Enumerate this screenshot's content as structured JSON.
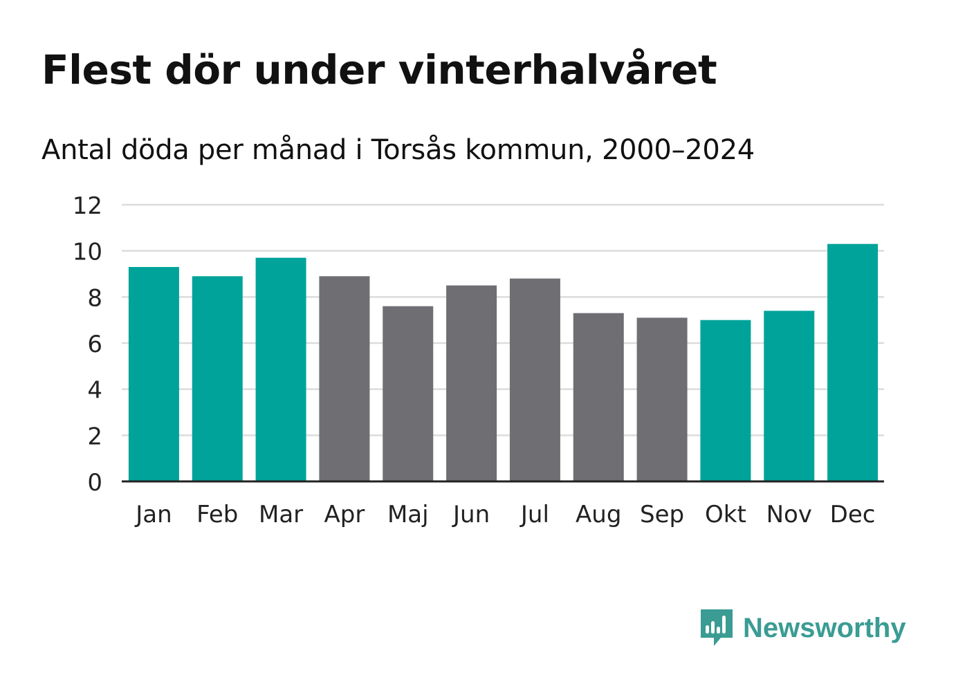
{
  "header": {
    "title": "Flest dör under vinterhalvåret",
    "subtitle": "Antal döda per månad i Torsås kommun, 2000–2024"
  },
  "chart_data": {
    "type": "bar",
    "title": "Flest dör under vinterhalvåret",
    "subtitle": "Antal döda per månad i Torsås kommun, 2000–2024",
    "xlabel": "",
    "ylabel": "",
    "ylim": [
      0,
      12
    ],
    "yticks": [
      0,
      2,
      4,
      6,
      8,
      10,
      12
    ],
    "grid": true,
    "categories": [
      "Jan",
      "Feb",
      "Mar",
      "Apr",
      "Maj",
      "Jun",
      "Jul",
      "Aug",
      "Sep",
      "Okt",
      "Nov",
      "Dec"
    ],
    "values": [
      9.3,
      8.9,
      9.7,
      8.9,
      7.6,
      8.5,
      8.8,
      7.3,
      7.1,
      7.0,
      7.4,
      10.3
    ],
    "highlight": [
      true,
      true,
      true,
      false,
      false,
      false,
      false,
      false,
      false,
      true,
      true,
      true
    ],
    "colors": {
      "highlight": "#00a39a",
      "default": "#6f6e73",
      "grid": "#dcdcdc",
      "axis": "#222222"
    }
  },
  "branding": {
    "name": "Newsworthy",
    "logo_icon": "newsworthy-chart-bubble-icon",
    "color": "#3a9c93"
  }
}
